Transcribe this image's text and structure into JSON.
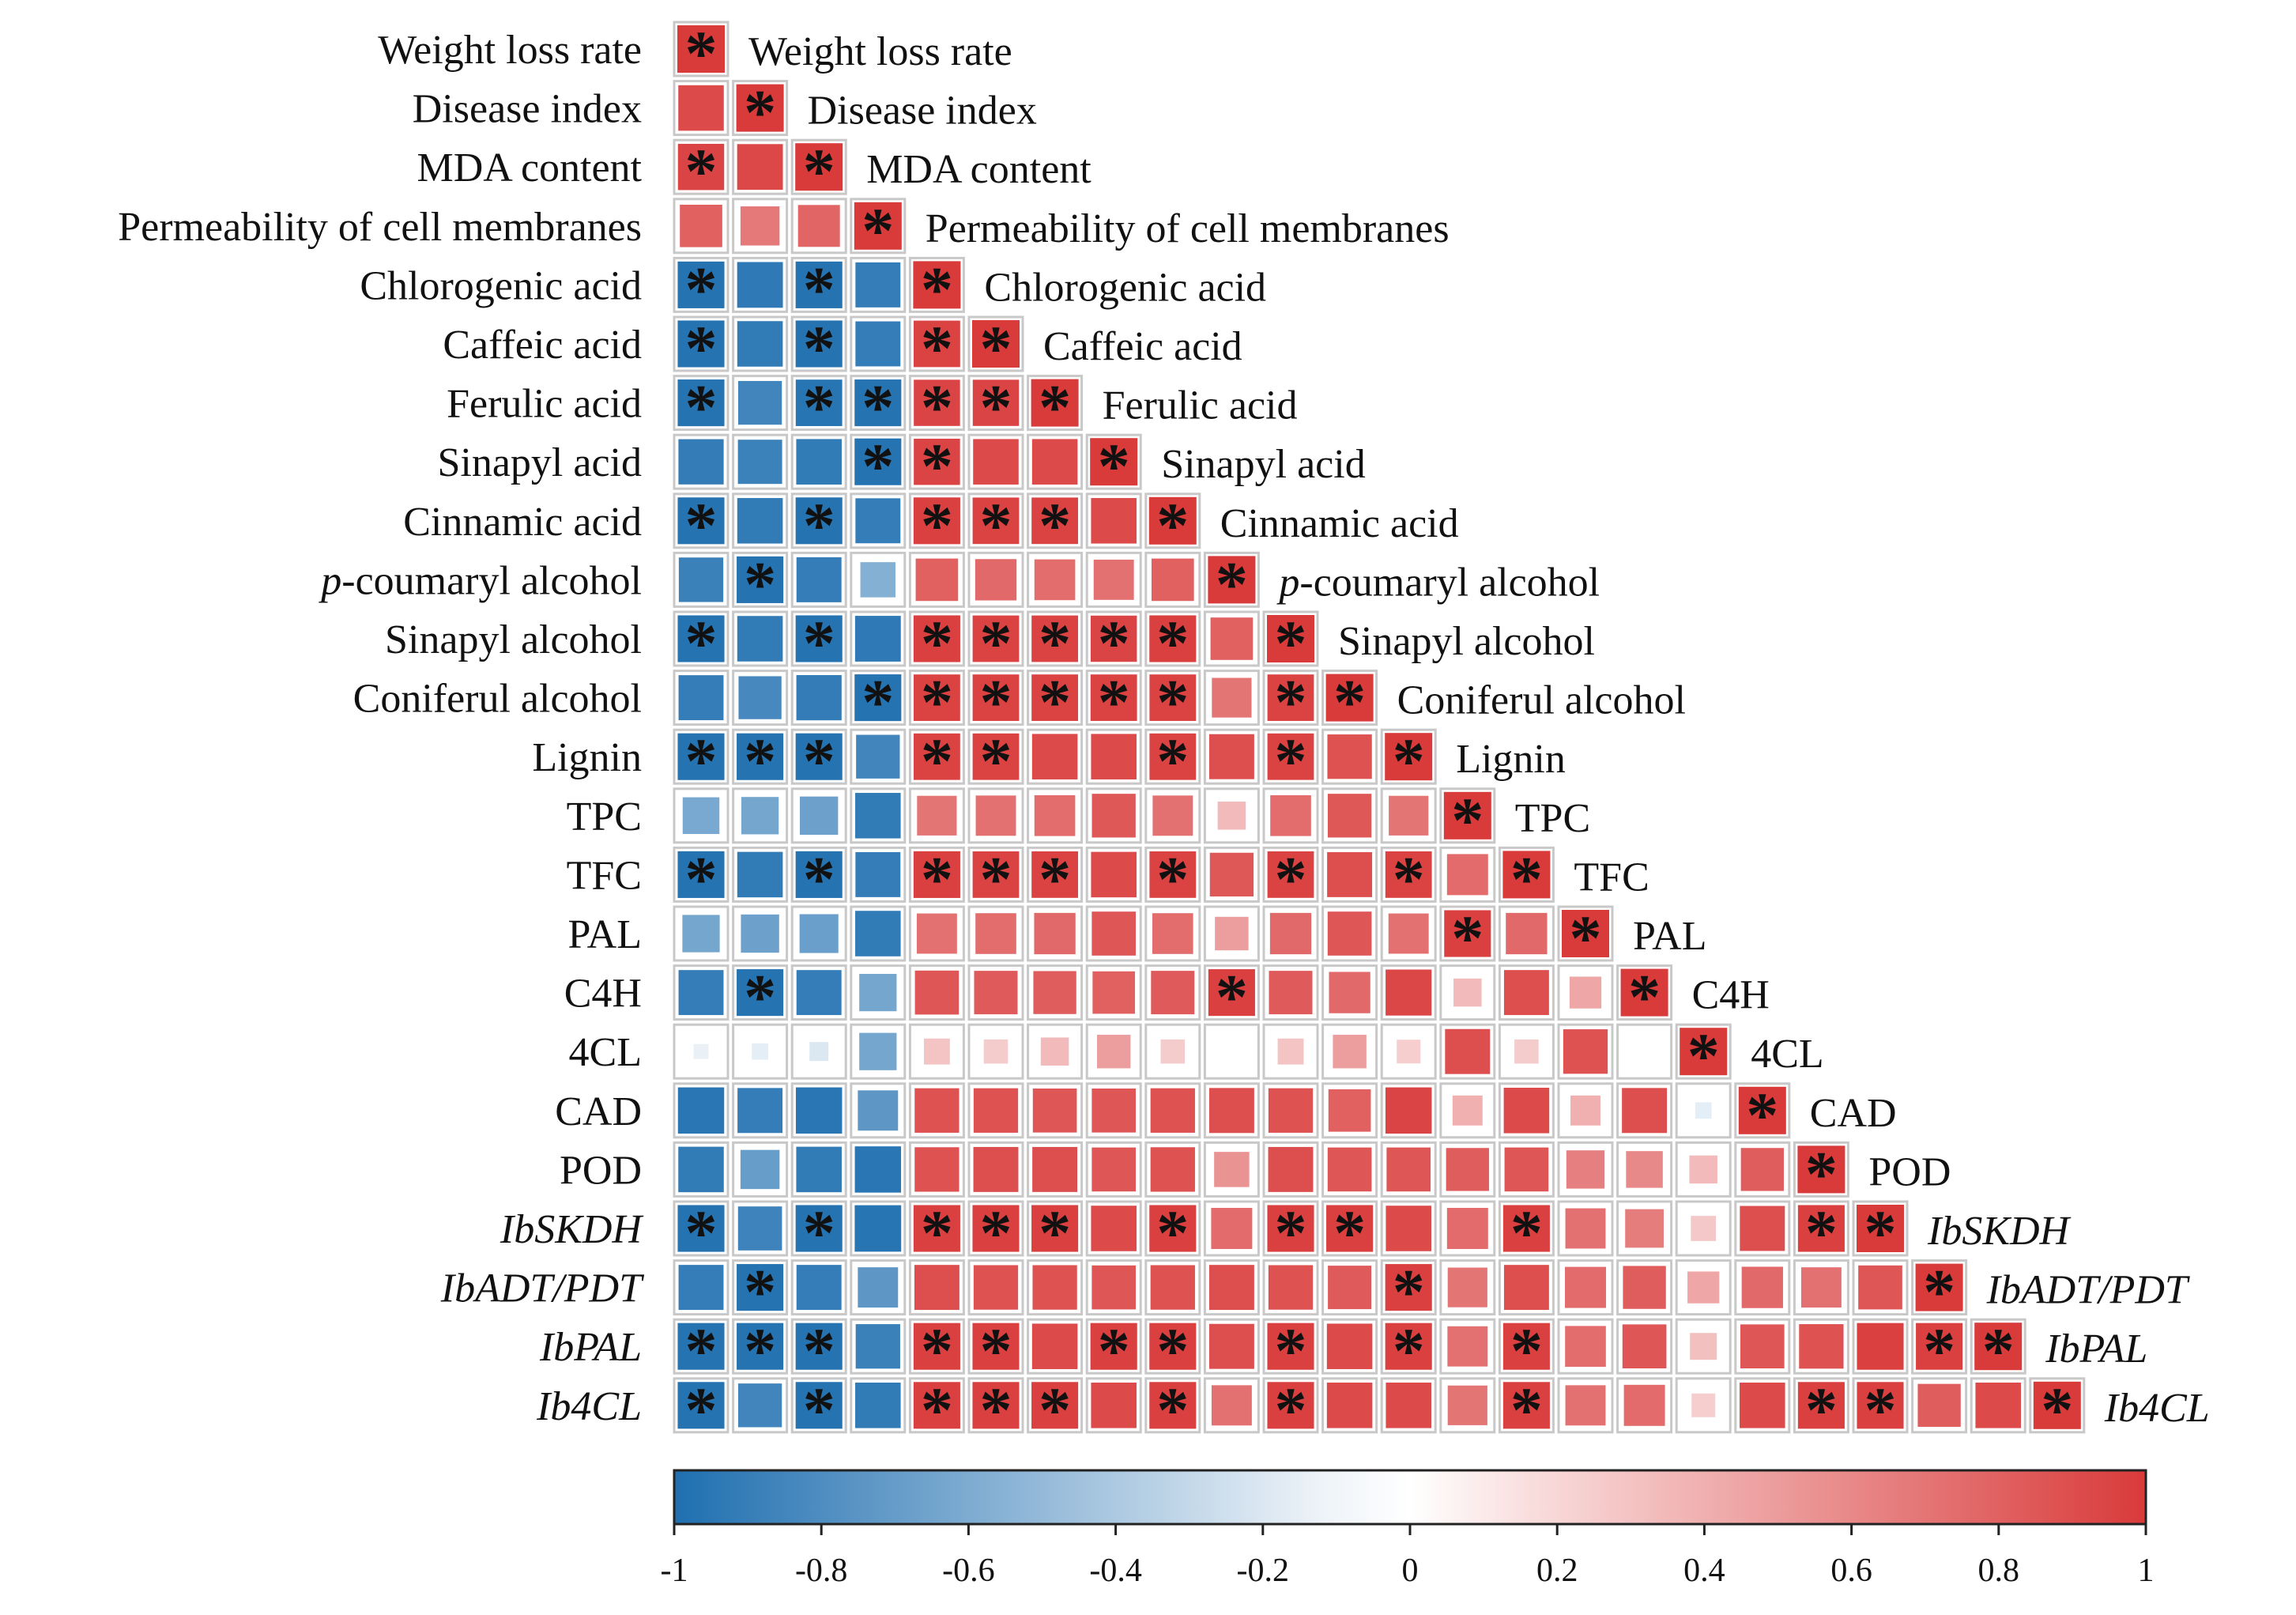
{
  "chart_data": {
    "type": "heatmap",
    "subtype": "lower-triangular correlation matrix",
    "variables": [
      "Weight loss rate",
      "Disease index",
      "MDA content",
      "Permeability of cell membranes",
      "Chlorogenic acid",
      "Caffeic acid",
      "Ferulic acid",
      "Sinapyl acid",
      "Cinnamic acid",
      "p-coumaryl alcohol",
      "Sinapyl alcohol",
      "Coniferul alcohol",
      "Lignin",
      "TPC",
      "TFC",
      "PAL",
      "C4H",
      "4CL",
      "CAD",
      "POD",
      "IbSKDH",
      "IbADT/PDT",
      "IbPAL",
      "Ib4CL"
    ],
    "italic_variables": [
      "IbSKDH",
      "IbADT/PDT",
      "IbPAL",
      "Ib4CL"
    ],
    "label_parts": {
      "p-coumaryl alcohol": {
        "italic": "p",
        "plain": "-coumaryl alcohol"
      }
    },
    "values": [
      [
        1.0
      ],
      [
        0.92,
        1.0
      ],
      [
        0.95,
        0.93,
        1.0
      ],
      [
        0.8,
        0.68,
        0.78,
        1.0
      ],
      [
        -0.97,
        -0.93,
        -0.97,
        -0.9,
        1.0
      ],
      [
        -0.97,
        -0.92,
        -0.97,
        -0.9,
        0.96,
        1.0
      ],
      [
        -0.97,
        -0.85,
        -0.96,
        -0.97,
        0.95,
        0.95,
        1.0
      ],
      [
        -0.91,
        -0.87,
        -0.92,
        -0.97,
        0.95,
        0.92,
        0.92,
        1.0
      ],
      [
        -0.97,
        -0.92,
        -0.97,
        -0.9,
        0.97,
        0.96,
        0.96,
        0.92,
        1.0
      ],
      [
        -0.88,
        -0.97,
        -0.9,
        -0.55,
        0.8,
        0.76,
        0.74,
        0.72,
        0.8,
        1.0
      ],
      [
        -0.97,
        -0.92,
        -0.97,
        -0.93,
        0.97,
        0.96,
        0.96,
        0.95,
        0.97,
        0.8,
        1.0
      ],
      [
        -0.9,
        -0.82,
        -0.91,
        -0.97,
        0.96,
        0.96,
        0.96,
        0.96,
        0.96,
        0.7,
        0.96,
        1.0
      ],
      [
        -0.97,
        -0.97,
        -0.97,
        -0.85,
        0.96,
        0.96,
        0.92,
        0.92,
        0.96,
        0.9,
        0.96,
        0.88,
        1.0
      ],
      [
        -0.6,
        -0.62,
        -0.65,
        -0.92,
        0.7,
        0.72,
        0.74,
        0.85,
        0.72,
        0.35,
        0.74,
        0.85,
        0.7,
        1.0
      ],
      [
        -0.97,
        -0.92,
        -0.97,
        -0.9,
        0.97,
        0.96,
        0.96,
        0.92,
        0.96,
        0.85,
        0.96,
        0.9,
        0.96,
        0.75,
        1.0
      ],
      [
        -0.62,
        -0.65,
        -0.67,
        -0.92,
        0.72,
        0.74,
        0.76,
        0.86,
        0.74,
        0.5,
        0.76,
        0.86,
        0.72,
        0.97,
        0.76,
        1.0
      ],
      [
        -0.9,
        -0.97,
        -0.9,
        -0.62,
        0.86,
        0.84,
        0.82,
        0.8,
        0.84,
        0.97,
        0.84,
        0.76,
        0.94,
        0.35,
        0.9,
        0.45,
        1.0
      ],
      [
        -0.1,
        -0.12,
        -0.16,
        -0.62,
        0.3,
        0.26,
        0.35,
        0.5,
        0.26,
        0.0,
        0.3,
        0.5,
        0.25,
        0.9,
        0.26,
        0.88,
        0.0,
        1.0
      ],
      [
        -0.95,
        -0.9,
        -0.95,
        -0.72,
        0.88,
        0.88,
        0.86,
        0.86,
        0.88,
        0.9,
        0.88,
        0.8,
        0.95,
        0.4,
        0.92,
        0.4,
        0.9,
        -0.12,
        1.0
      ],
      [
        -0.92,
        -0.68,
        -0.92,
        -0.95,
        0.88,
        0.9,
        0.9,
        0.86,
        0.88,
        0.55,
        0.9,
        0.86,
        0.86,
        0.82,
        0.86,
        0.65,
        0.6,
        0.35,
        0.82,
        1.0
      ],
      [
        -0.97,
        -0.86,
        -0.97,
        -0.96,
        0.97,
        0.97,
        0.97,
        0.92,
        0.97,
        0.75,
        0.97,
        0.97,
        0.92,
        0.75,
        0.97,
        0.72,
        0.66,
        0.28,
        0.9,
        0.97,
        1.0
      ],
      [
        -0.9,
        -0.97,
        -0.9,
        -0.72,
        0.9,
        0.88,
        0.88,
        0.86,
        0.88,
        0.9,
        0.88,
        0.84,
        0.97,
        0.7,
        0.9,
        0.75,
        0.82,
        0.45,
        0.76,
        0.72,
        0.86,
        1.0
      ],
      [
        -0.97,
        -0.97,
        -0.97,
        -0.88,
        0.97,
        0.97,
        0.92,
        0.97,
        0.97,
        0.9,
        0.97,
        0.92,
        0.97,
        0.72,
        0.97,
        0.74,
        0.86,
        0.32,
        0.86,
        0.88,
        0.97,
        0.97,
        1.0
      ],
      [
        -0.97,
        -0.85,
        -0.97,
        -0.92,
        0.97,
        0.97,
        0.97,
        0.92,
        0.97,
        0.72,
        0.97,
        0.92,
        0.92,
        0.7,
        0.97,
        0.72,
        0.75,
        0.25,
        0.92,
        0.97,
        0.97,
        0.82,
        0.92,
        1.0
      ]
    ],
    "significance_marker": "*",
    "significant": [
      [
        0
      ],
      [
        1
      ],
      [
        0,
        2
      ],
      [
        3
      ],
      [
        0,
        2,
        4
      ],
      [
        0,
        2,
        4,
        5
      ],
      [
        0,
        2,
        3,
        4,
        5,
        6
      ],
      [
        3,
        4,
        7
      ],
      [
        0,
        2,
        4,
        5,
        6,
        8
      ],
      [
        1,
        9
      ],
      [
        0,
        2,
        4,
        5,
        6,
        7,
        8,
        10
      ],
      [
        3,
        4,
        5,
        6,
        7,
        8,
        10,
        11
      ],
      [
        0,
        1,
        2,
        4,
        5,
        8,
        10,
        12
      ],
      [
        13
      ],
      [
        0,
        2,
        4,
        5,
        6,
        8,
        10,
        12,
        14
      ],
      [
        13,
        15
      ],
      [
        1,
        9,
        16
      ],
      [
        17
      ],
      [
        18
      ],
      [
        19
      ],
      [
        0,
        2,
        4,
        5,
        6,
        8,
        10,
        11,
        14,
        19,
        20
      ],
      [
        1,
        12,
        21
      ],
      [
        0,
        1,
        2,
        4,
        5,
        7,
        8,
        10,
        12,
        14,
        21,
        22
      ],
      [
        0,
        2,
        4,
        5,
        6,
        8,
        10,
        14,
        19,
        20,
        23
      ]
    ],
    "colorbar": {
      "range": [
        -1,
        1
      ],
      "ticks": [
        "-1",
        "-0.8",
        "-0.6",
        "-0.4",
        "-0.2",
        "0",
        "0.2",
        "0.4",
        "0.6",
        "0.8",
        "1"
      ],
      "negative_color": "#1f6fb0",
      "neutral_color": "#ffffff",
      "positive_color": "#d93a3a"
    },
    "legend_position": "bottom"
  }
}
